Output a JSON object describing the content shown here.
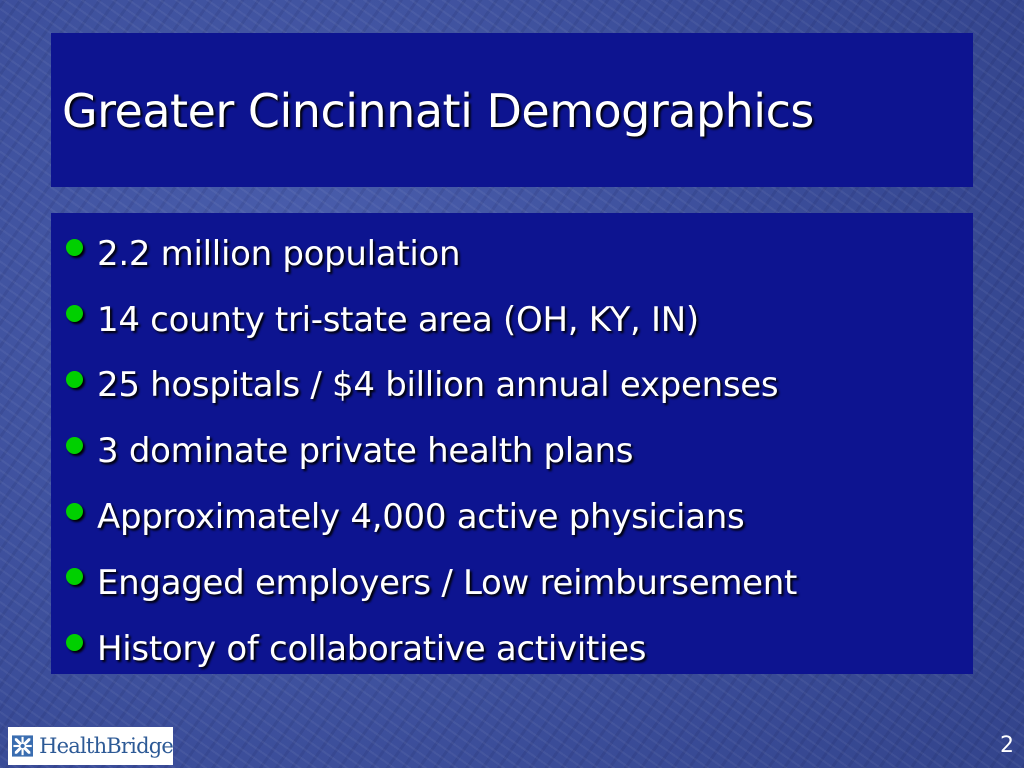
{
  "slide": {
    "title": "Greater Cincinnati Demographics",
    "bullets": [
      "2.2 million population",
      "14 county tri-state area (OH, KY, IN)",
      "25 hospitals / $4 billion annual expenses",
      "3 dominate private health plans",
      "Approximately 4,000 active physicians",
      "Engaged employers / Low reimbursement",
      "History of collaborative activities"
    ],
    "page_number": "2"
  },
  "logo": {
    "text": "HealthBridge",
    "icon": "healthbridge-logo-icon"
  },
  "colors": {
    "background": "#3c4f9c",
    "panel": "#0d1490",
    "text": "#ffffff",
    "bullet": "#00d000",
    "logo_text": "#2d5a96"
  }
}
